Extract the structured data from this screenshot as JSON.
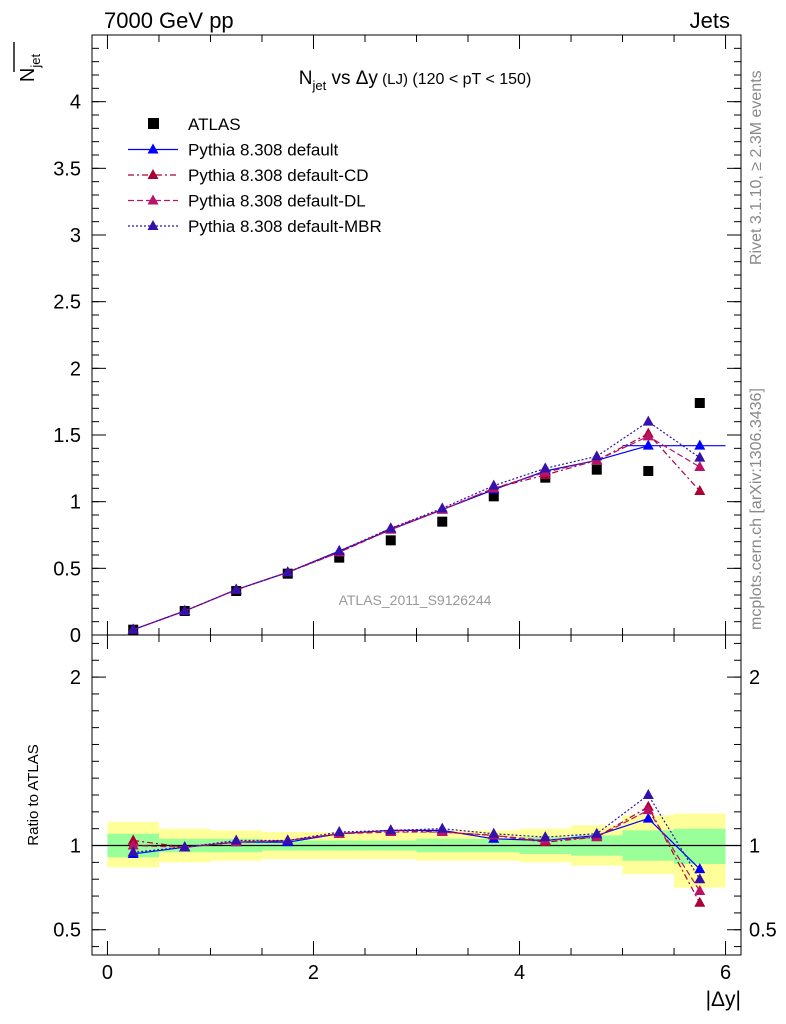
{
  "header": {
    "energy_label": "7000 GeV pp",
    "category_label": "Jets",
    "rivet_label": "Rivet 3.1.10, ≥ 2.3M events",
    "mcplots_label": "mcplots.cern.ch [arXiv:1306.3436]"
  },
  "chart_data": [
    {
      "type": "scatter",
      "title_main": "N",
      "title_sub": "jet",
      "title_rest": " vs Δy",
      "title_small": " (LJ)",
      "title_cut": " (120 < pT < 150)",
      "ylabel_main": "N",
      "ylabel_sub": "jet",
      "watermark": "ATLAS_2011_S9126244",
      "ylim": [
        0,
        4.5
      ],
      "yticks": [
        {
          "v": 0,
          "label": "0"
        },
        {
          "v": 0.5,
          "label": "0.5"
        },
        {
          "v": 1,
          "label": "1"
        },
        {
          "v": 1.5,
          "label": "1.5"
        },
        {
          "v": 2,
          "label": "2"
        },
        {
          "v": 2.5,
          "label": "2.5"
        },
        {
          "v": 3,
          "label": "3"
        },
        {
          "v": 3.5,
          "label": "3.5"
        },
        {
          "v": 4,
          "label": "4"
        }
      ],
      "legend_position": "top-left",
      "bin_edges": [
        0,
        0.5,
        1,
        1.5,
        2,
        2.5,
        3,
        3.5,
        4,
        4.5,
        5,
        5.5,
        6
      ],
      "x": [
        0.25,
        0.75,
        1.25,
        1.75,
        2.25,
        2.75,
        3.25,
        3.75,
        4.25,
        4.75,
        5.25,
        5.75
      ],
      "series": [
        {
          "name": "ATLAS",
          "color": "#000000",
          "marker": "square",
          "dash": "none",
          "values": [
            0.04,
            0.18,
            0.33,
            0.46,
            0.58,
            0.71,
            0.85,
            1.04,
            1.18,
            1.24,
            1.23,
            1.74
          ]
        },
        {
          "name": "Pythia 8.308 default",
          "color": "#0000ff",
          "marker": "triangle",
          "dash": "solid",
          "values": [
            0.04,
            0.18,
            0.34,
            0.47,
            0.63,
            0.79,
            0.94,
            1.09,
            1.23,
            1.31,
            1.42,
            1.42
          ]
        },
        {
          "name": "Pythia 8.308 default-CD",
          "color": "#aa0033",
          "marker": "triangle",
          "dash": "dashdot",
          "values": [
            0.04,
            0.18,
            0.34,
            0.47,
            0.62,
            0.8,
            0.94,
            1.1,
            1.2,
            1.31,
            1.51,
            1.08
          ]
        },
        {
          "name": "Pythia 8.308 default-DL",
          "color": "#bb1166",
          "marker": "triangle",
          "dash": "dashed",
          "values": [
            0.04,
            0.18,
            0.34,
            0.47,
            0.62,
            0.79,
            0.94,
            1.1,
            1.22,
            1.31,
            1.49,
            1.26
          ]
        },
        {
          "name": "Pythia 8.308 default-MBR",
          "color": "#3311aa",
          "marker": "triangle",
          "dash": "dotted",
          "values": [
            0.04,
            0.18,
            0.34,
            0.47,
            0.63,
            0.8,
            0.95,
            1.12,
            1.25,
            1.34,
            1.6,
            1.33
          ]
        }
      ]
    },
    {
      "type": "scatter",
      "ylabel": "Ratio to ATLAS",
      "xlabel": "|Δy|",
      "xlim": [
        -0.15,
        6.15
      ],
      "xticks": [
        {
          "v": 0,
          "label": "0"
        },
        {
          "v": 2,
          "label": "2"
        },
        {
          "v": 4,
          "label": "4"
        },
        {
          "v": 6,
          "label": "6"
        }
      ],
      "ylim": [
        0.35,
        2.25
      ],
      "yticks": [
        {
          "v": 0.5,
          "label": "0.5"
        },
        {
          "v": 1,
          "label": "1"
        },
        {
          "v": 2,
          "label": "2"
        }
      ],
      "reference": 1,
      "band_inner": [
        [
          0.93,
          1.07
        ],
        [
          0.96,
          1.04
        ],
        [
          0.96,
          1.04
        ],
        [
          0.97,
          1.03
        ],
        [
          0.97,
          1.03
        ],
        [
          0.97,
          1.03
        ],
        [
          0.96,
          1.04
        ],
        [
          0.96,
          1.04
        ],
        [
          0.95,
          1.05
        ],
        [
          0.94,
          1.06
        ],
        [
          0.91,
          1.09
        ],
        [
          0.89,
          1.1
        ]
      ],
      "band_outer": [
        [
          0.87,
          1.14
        ],
        [
          0.9,
          1.1
        ],
        [
          0.91,
          1.09
        ],
        [
          0.92,
          1.08
        ],
        [
          0.92,
          1.08
        ],
        [
          0.92,
          1.08
        ],
        [
          0.91,
          1.09
        ],
        [
          0.91,
          1.09
        ],
        [
          0.9,
          1.1
        ],
        [
          0.88,
          1.12
        ],
        [
          0.83,
          1.18
        ],
        [
          0.75,
          1.19
        ]
      ],
      "band_colors": {
        "inner": "#99ff99",
        "outer": "#ffff99"
      },
      "series": [
        {
          "name": "Pythia 8.308 default",
          "values": [
            0.95,
            0.99,
            1.02,
            1.02,
            1.07,
            1.09,
            1.09,
            1.04,
            1.03,
            1.06,
            1.16,
            0.86
          ]
        },
        {
          "name": "Pythia 8.308 default-CD",
          "values": [
            1.03,
            0.99,
            1.02,
            1.03,
            1.07,
            1.09,
            1.08,
            1.06,
            1.02,
            1.05,
            1.23,
            0.66
          ]
        },
        {
          "name": "Pythia 8.308 default-DL",
          "values": [
            1.0,
            0.99,
            1.02,
            1.03,
            1.07,
            1.08,
            1.08,
            1.06,
            1.03,
            1.05,
            1.21,
            0.73
          ]
        },
        {
          "name": "Pythia 8.308 default-MBR",
          "values": [
            0.96,
            0.99,
            1.03,
            1.03,
            1.08,
            1.09,
            1.1,
            1.07,
            1.05,
            1.07,
            1.3,
            0.8
          ]
        }
      ]
    }
  ]
}
